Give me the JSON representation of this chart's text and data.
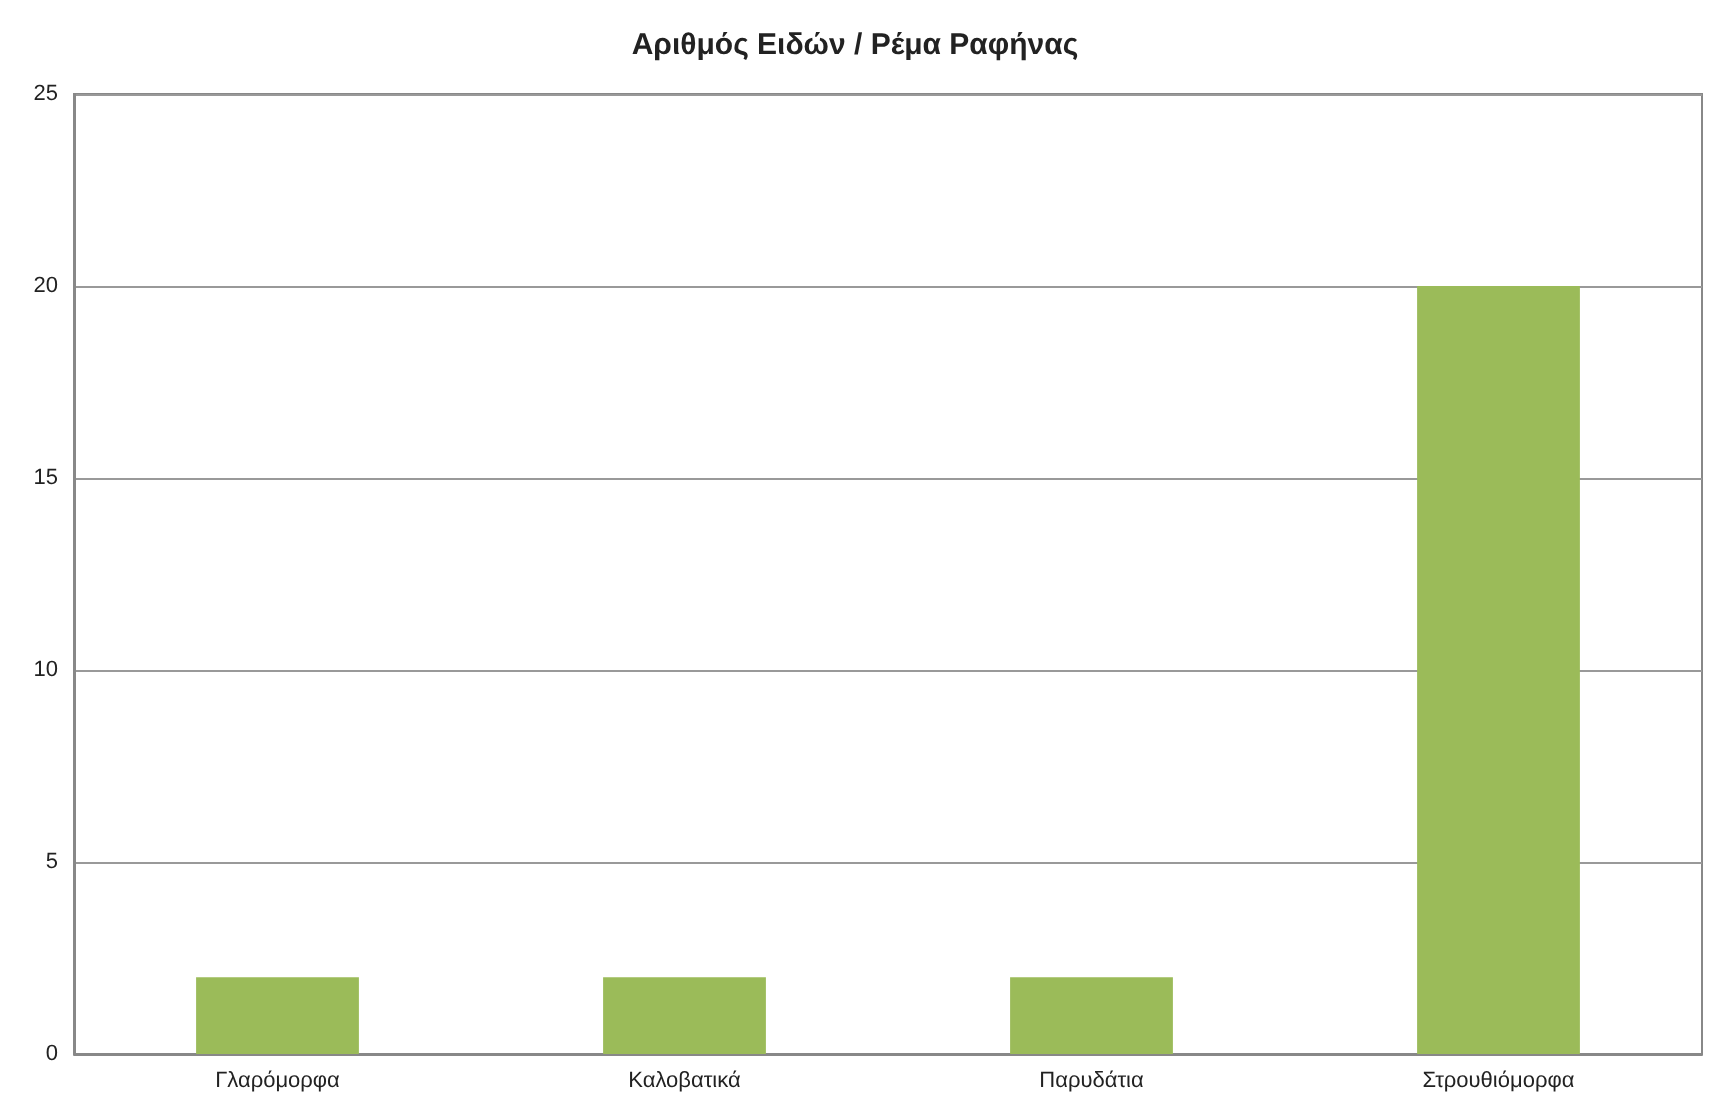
{
  "chart_data": {
    "type": "bar",
    "title": "Αριθμός Ειδών / Ρέμα Ραφήνας",
    "categories": [
      "Γλαρόμορφα",
      "Καλοβατικά",
      "Παρυδάτια",
      "Στρουθιόμορφα"
    ],
    "values": [
      2,
      2,
      2,
      20
    ],
    "color": "#9bbb59",
    "ylim": [
      0,
      25
    ],
    "yticks": [
      0,
      5,
      10,
      15,
      20,
      25
    ],
    "grid": "y"
  }
}
